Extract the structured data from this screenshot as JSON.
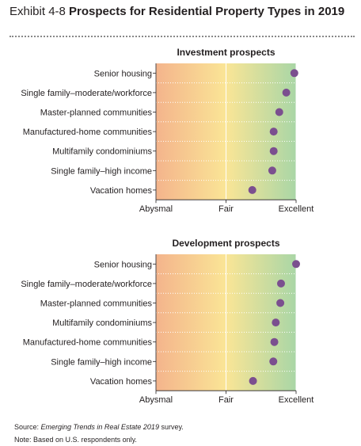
{
  "title": {
    "exhibit": "Exhibit 4-8",
    "text": "Prospects for Residential Property Types in 2019"
  },
  "colors": {
    "marker": "#7b4f8f",
    "gradient": [
      "#f4b48c",
      "#fae596",
      "#a9d6a6"
    ]
  },
  "chart_data": [
    {
      "type": "scatter",
      "title": "Investment prospects",
      "xlim": [
        1,
        5
      ],
      "x_ticks": [
        1,
        3,
        5
      ],
      "x_tick_labels": [
        "Abysmal",
        "Fair",
        "Excellent"
      ],
      "categories": [
        "Senior housing",
        "Single family–moderate/workforce",
        "Master-planned communities",
        "Manufactured-home communities",
        "Multifamily condominiums",
        "Single family–high income",
        "Vacation homes"
      ],
      "values": [
        4.95,
        4.72,
        4.52,
        4.36,
        4.36,
        4.32,
        3.75
      ]
    },
    {
      "type": "scatter",
      "title": "Development prospects",
      "xlim": [
        1,
        5
      ],
      "x_ticks": [
        1,
        3,
        5
      ],
      "x_tick_labels": [
        "Abysmal",
        "Fair",
        "Excellent"
      ],
      "categories": [
        "Senior housing",
        "Single family–moderate/workforce",
        "Master-planned communities",
        "Multifamily condominiums",
        "Manufactured-home communities",
        "Single family–high income",
        "Vacation homes"
      ],
      "values": [
        5.0,
        4.57,
        4.55,
        4.42,
        4.38,
        4.35,
        3.77
      ]
    }
  ],
  "footer": {
    "source_prefix": "Source: ",
    "source_title": "Emerging Trends in Real Estate 2019",
    "source_suffix": " survey.",
    "note": "Note: Based on U.S. respondents only."
  }
}
